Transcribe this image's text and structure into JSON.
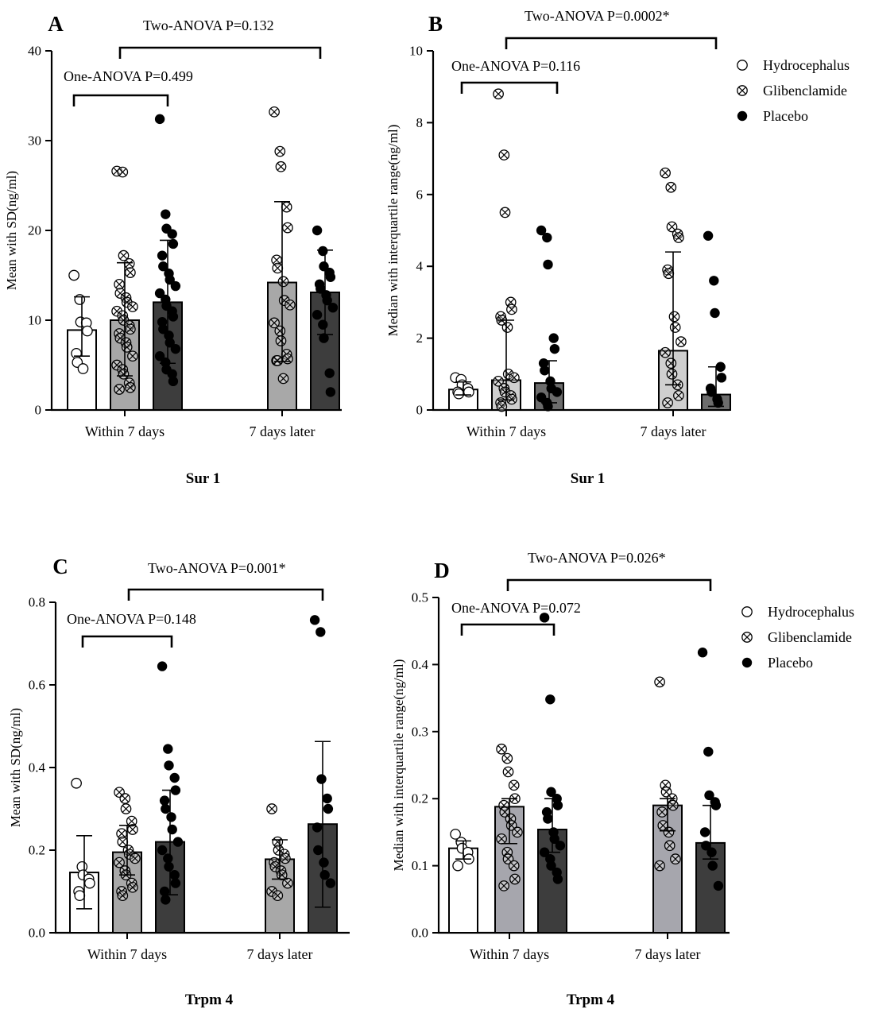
{
  "colors": {
    "hydrocephalus_fill": "#ffffff",
    "glibenclamide_fill": "#a8a8a8",
    "placebo_fill": "#3d3d3d",
    "glib_fill_b": "#cfcfcf",
    "plac_fill_b": "#6c6c6c",
    "glib_fill_d": "#a6a6ad",
    "ink": "#000000"
  },
  "legend": [
    "Hydrocephalus",
    "Glibenclamide",
    "Placebo"
  ],
  "chart_data": [
    {
      "type": "bar",
      "panel": "A",
      "title": "Sur 1",
      "ylabel": "Mean with SD(ng/ml)",
      "ylim": [
        0,
        40
      ],
      "yticks": [
        0,
        10,
        20,
        30,
        40
      ],
      "groups": [
        "Within 7 days",
        "7 days later"
      ],
      "one_anova": "One-ANOVA P=0.499",
      "two_anova": "Two-ANOVA P=0.132",
      "series": [
        {
          "name": "Hydrocephalus",
          "values": [
            8.9,
            null
          ],
          "err_low": [
            6.0,
            null
          ],
          "err_high": [
            12.6,
            null
          ],
          "points": [
            [
              15.0,
              12.3,
              9.8,
              9.7,
              8.8,
              6.3,
              5.3,
              4.6
            ],
            []
          ]
        },
        {
          "name": "Glibenclamide",
          "values": [
            10.0,
            14.2
          ],
          "err_low": [
            3.8,
            5.4
          ],
          "err_high": [
            16.4,
            23.2
          ],
          "points": [
            [
              26.6,
              26.5,
              17.2,
              16.3,
              15.3,
              14.0,
              13.0,
              12.5,
              12.0,
              11.5,
              11.0,
              10.5,
              10.0,
              9.4,
              9.0,
              8.5,
              8.0,
              7.5,
              7.0,
              6.0,
              5.0,
              4.5,
              4.0,
              3.0,
              2.5,
              2.3
            ],
            [
              33.2,
              28.8,
              27.1,
              22.6,
              20.3,
              16.7,
              15.8,
              14.3,
              12.2,
              11.7,
              9.7,
              8.8,
              7.7,
              6.2,
              5.7,
              5.5,
              5.5,
              3.5
            ]
          ]
        },
        {
          "name": "Placebo",
          "values": [
            12.0,
            13.1
          ],
          "err_low": [
            5.2,
            8.4
          ],
          "err_high": [
            18.9,
            17.8
          ],
          "points": [
            [
              32.4,
              21.8,
              20.2,
              19.6,
              18.5,
              17.2,
              16.0,
              15.2,
              14.5,
              13.8,
              13.0,
              12.3,
              11.6,
              11.0,
              10.4,
              9.8,
              9.0,
              8.3,
              7.5,
              6.8,
              6.0,
              5.3,
              4.5,
              4.0,
              3.2
            ],
            [
              20.0,
              17.7,
              16.0,
              15.3,
              14.8,
              14.0,
              13.5,
              12.8,
              12.2,
              11.4,
              10.6,
              9.5,
              8.0,
              4.1,
              2.0
            ]
          ]
        }
      ]
    },
    {
      "type": "bar",
      "panel": "B",
      "title": "Sur 1",
      "ylabel": "Median with interquartile range(ng/ml)",
      "ylim": [
        0,
        10
      ],
      "yticks": [
        0,
        2,
        4,
        6,
        8,
        10
      ],
      "groups": [
        "Within 7 days",
        "7 days later"
      ],
      "one_anova": "One-ANOVA P=0.116",
      "two_anova": "Two-ANOVA P=0.0002*",
      "series": [
        {
          "name": "Hydrocephalus",
          "values": [
            0.57,
            null
          ],
          "err_low": [
            0.42,
            null
          ],
          "err_high": [
            0.78,
            null
          ],
          "points": [
            [
              0.9,
              0.85,
              0.7,
              0.6,
              0.5,
              0.5,
              0.45
            ],
            []
          ]
        },
        {
          "name": "Glibenclamide",
          "values": [
            0.83,
            1.65
          ],
          "err_low": [
            0.28,
            0.7
          ],
          "err_high": [
            2.5,
            4.4
          ],
          "points": [
            [
              8.8,
              7.1,
              5.5,
              3.0,
              2.8,
              2.6,
              2.5,
              2.3,
              1.0,
              0.9,
              0.8,
              0.6,
              0.5,
              0.4,
              0.3,
              0.2,
              0.1
            ],
            [
              6.6,
              6.2,
              5.1,
              4.9,
              4.8,
              3.9,
              3.8,
              2.6,
              2.3,
              1.9,
              1.6,
              1.3,
              1.0,
              0.7,
              0.4,
              0.2
            ]
          ]
        },
        {
          "name": "Placebo",
          "values": [
            0.75,
            0.43
          ],
          "err_low": [
            0.2,
            0.1
          ],
          "err_high": [
            1.37,
            1.2
          ],
          "points": [
            [
              5.0,
              4.8,
              4.05,
              2.0,
              1.7,
              1.3,
              1.1,
              0.8,
              0.6,
              0.5,
              0.35,
              0.2,
              0.1
            ],
            [
              4.85,
              3.6,
              2.7,
              1.2,
              0.9,
              0.6,
              0.5,
              0.3,
              0.2
            ]
          ]
        }
      ]
    },
    {
      "type": "bar",
      "panel": "C",
      "title": "Trpm 4",
      "ylabel": "Mean with SD(ng/ml)",
      "ylim": [
        0,
        0.8
      ],
      "yticks": [
        0.0,
        0.2,
        0.4,
        0.6,
        0.8
      ],
      "groups": [
        "Within 7 days",
        "7 days later"
      ],
      "one_anova": "One-ANOVA P=0.148",
      "two_anova": "Two-ANOVA P=0.001*",
      "series": [
        {
          "name": "Hydrocephalus",
          "values": [
            0.146,
            null
          ],
          "err_low": [
            0.058,
            null
          ],
          "err_high": [
            0.235,
            null
          ],
          "points": [
            [
              0.362,
              0.16,
              0.14,
              0.13,
              0.12,
              0.1,
              0.09
            ],
            []
          ]
        },
        {
          "name": "Glibenclamide",
          "values": [
            0.195,
            0.178
          ],
          "err_low": [
            0.14,
            0.13
          ],
          "err_high": [
            0.26,
            0.225
          ],
          "points": [
            [
              0.34,
              0.325,
              0.3,
              0.27,
              0.25,
              0.24,
              0.22,
              0.2,
              0.19,
              0.18,
              0.17,
              0.15,
              0.14,
              0.12,
              0.11,
              0.1,
              0.09
            ],
            [
              0.3,
              0.22,
              0.2,
              0.19,
              0.18,
              0.17,
              0.16,
              0.15,
              0.14,
              0.12,
              0.1,
              0.09
            ]
          ]
        },
        {
          "name": "Placebo",
          "values": [
            0.22,
            0.263
          ],
          "err_low": [
            0.092,
            0.062
          ],
          "err_high": [
            0.345,
            0.463
          ],
          "points": [
            [
              0.645,
              0.445,
              0.405,
              0.375,
              0.345,
              0.32,
              0.3,
              0.28,
              0.25,
              0.22,
              0.2,
              0.18,
              0.16,
              0.14,
              0.12,
              0.1,
              0.08
            ],
            [
              0.757,
              0.728,
              0.372,
              0.325,
              0.3,
              0.255,
              0.2,
              0.17,
              0.14,
              0.12
            ]
          ]
        }
      ]
    },
    {
      "type": "bar",
      "panel": "D",
      "title": "Trpm 4",
      "ylabel": "Median with interquartile range(ng/ml)",
      "ylim": [
        0,
        0.5
      ],
      "yticks": [
        0.0,
        0.1,
        0.2,
        0.3,
        0.4,
        0.5
      ],
      "groups": [
        "Within 7 days",
        "7 days later"
      ],
      "one_anova": "One-ANOVA P=0.072",
      "two_anova": "Two-ANOVA P=0.026*",
      "series": [
        {
          "name": "Hydrocephalus",
          "values": [
            0.126,
            null
          ],
          "err_low": [
            0.11,
            null
          ],
          "err_high": [
            0.137,
            null
          ],
          "points": [
            [
              0.147,
              0.135,
              0.126,
              0.12,
              0.11,
              0.1
            ],
            []
          ]
        },
        {
          "name": "Glibenclamide",
          "values": [
            0.188,
            0.19
          ],
          "err_low": [
            0.133,
            0.152
          ],
          "err_high": [
            0.2,
            0.2
          ],
          "points": [
            [
              0.274,
              0.26,
              0.24,
              0.22,
              0.2,
              0.19,
              0.18,
              0.17,
              0.16,
              0.15,
              0.14,
              0.12,
              0.11,
              0.1,
              0.08,
              0.07
            ],
            [
              0.374,
              0.22,
              0.21,
              0.2,
              0.19,
              0.18,
              0.16,
              0.15,
              0.13,
              0.11,
              0.1
            ]
          ]
        },
        {
          "name": "Placebo",
          "values": [
            0.154,
            0.134
          ],
          "err_low": [
            0.12,
            0.11
          ],
          "err_high": [
            0.2,
            0.19
          ],
          "points": [
            [
              0.47,
              0.348,
              0.21,
              0.2,
              0.19,
              0.18,
              0.17,
              0.15,
              0.14,
              0.13,
              0.12,
              0.11,
              0.1,
              0.09,
              0.08
            ],
            [
              0.418,
              0.27,
              0.205,
              0.195,
              0.19,
              0.15,
              0.13,
              0.12,
              0.1,
              0.07
            ]
          ]
        }
      ]
    }
  ]
}
